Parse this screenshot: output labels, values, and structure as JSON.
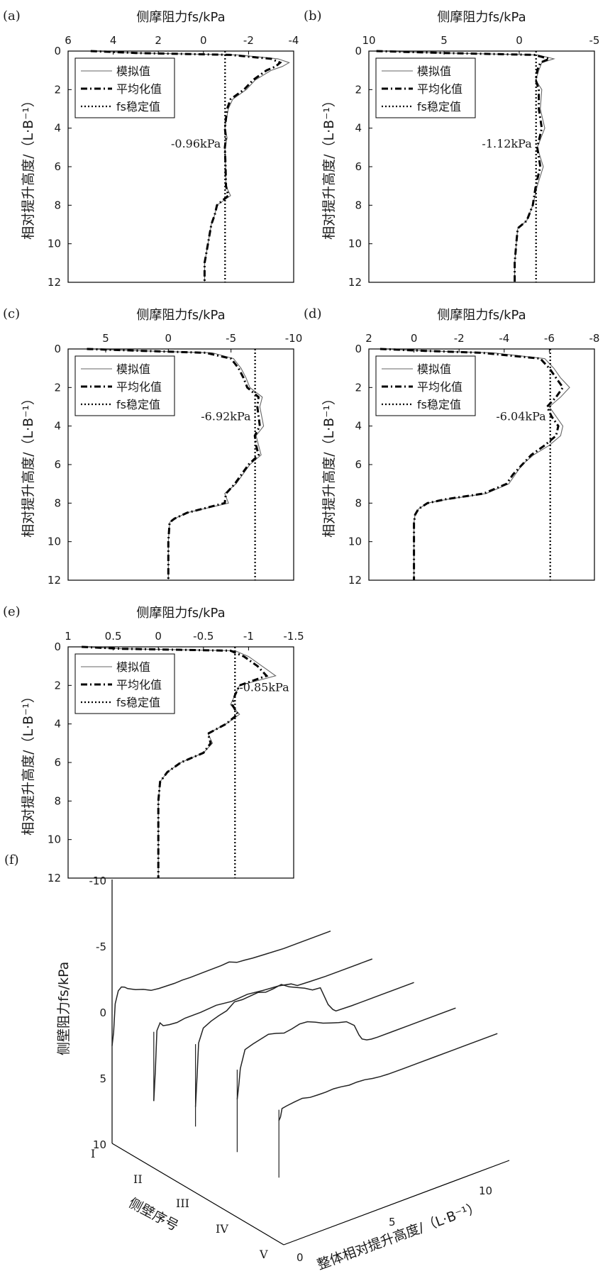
{
  "figure": {
    "panel_f": {
      "label": "(f)",
      "z_label": "侧壁阻力fs/kPa",
      "z_ticks": [
        "-10",
        "-5",
        "0",
        "5",
        "10"
      ],
      "wall_label": "侧壁序号",
      "wall_ticks": [
        "I",
        "II",
        "III",
        "IV",
        "V"
      ],
      "height_label": "整体相对提升高度/（L·B⁻¹）",
      "height_ticks": [
        "0",
        "5",
        "10"
      ]
    }
  },
  "chart_data": [
    {
      "type": "line",
      "panel": "(a)",
      "title": "侧摩阻力fs/kPa",
      "xlabel": "侧摩阻力fs/kPa",
      "ylabel": "相对提升高度/（L·B⁻¹）",
      "xlim": [
        6,
        -4
      ],
      "ylim": [
        12,
        0
      ],
      "x_ticks": [
        "6",
        "4",
        "2",
        "0",
        "-2",
        "-4"
      ],
      "y_ticks": [
        "0",
        "2",
        "4",
        "6",
        "8",
        "10",
        "12"
      ],
      "legend": [
        "模拟值",
        "平均化值",
        "fs稳定值"
      ],
      "legend_position": "top-left",
      "annotation": "-0.96kPa",
      "stable_value": -0.96,
      "series": [
        {
          "name": "模拟值",
          "y": [
            0,
            0.1,
            0.2,
            0.4,
            0.6,
            0.8,
            1,
            1.5,
            2,
            2.5,
            3,
            4,
            4.5,
            5,
            6,
            7,
            7.5,
            8,
            8.5,
            9,
            10,
            11,
            12
          ],
          "x": [
            5,
            3,
            -1.5,
            -3.3,
            -3.8,
            -3.5,
            -3.0,
            -2.3,
            -1.9,
            -1.3,
            -1.1,
            -0.95,
            -1.05,
            -0.95,
            -0.98,
            -1.0,
            -1.2,
            -0.6,
            -0.5,
            -0.35,
            -0.2,
            -0.05,
            -0.05
          ]
        },
        {
          "name": "平均化值",
          "y": [
            0,
            0.1,
            0.2,
            0.4,
            0.6,
            0.8,
            1,
            1.5,
            2,
            2.5,
            3,
            4,
            4.5,
            5,
            6,
            7,
            7.5,
            8,
            8.5,
            9,
            10,
            11,
            12
          ],
          "x": [
            5,
            3,
            -1.2,
            -3.0,
            -3.4,
            -3.2,
            -2.8,
            -2.2,
            -1.8,
            -1.2,
            -1.05,
            -0.95,
            -1.0,
            -0.95,
            -0.98,
            -1.0,
            -1.1,
            -0.6,
            -0.5,
            -0.35,
            -0.2,
            -0.05,
            -0.05
          ]
        },
        {
          "name": "fs稳定值",
          "y": [
            0,
            12
          ],
          "x": [
            -0.96,
            -0.96
          ]
        }
      ]
    },
    {
      "type": "line",
      "panel": "(b)",
      "title": "侧摩阻力fs/kPa",
      "xlabel": "侧摩阻力fs/kPa",
      "ylabel": "相对提升高度/（L·B⁻¹）",
      "xlim": [
        10,
        -5
      ],
      "ylim": [
        12,
        0
      ],
      "x_ticks": [
        "10",
        "5",
        "0",
        "-5"
      ],
      "y_ticks": [
        "0",
        "2",
        "4",
        "6",
        "8",
        "10",
        "12"
      ],
      "legend": [
        "模拟值",
        "平均化值",
        "fs稳定值"
      ],
      "legend_position": "top-left",
      "annotation": "-1.12kPa",
      "stable_value": -1.12,
      "series": [
        {
          "name": "模拟值",
          "y": [
            0,
            0.1,
            0.2,
            0.4,
            0.6,
            1,
            1.5,
            2,
            3,
            4,
            5,
            6,
            7,
            8,
            8.8,
            9.2,
            10,
            11,
            12
          ],
          "x": [
            9.5,
            5,
            -1.2,
            -2.3,
            -1.5,
            -1.3,
            -1.1,
            -1.5,
            -1.4,
            -1.7,
            -1.2,
            -1.6,
            -1.2,
            -0.9,
            -0.5,
            0.1,
            0.2,
            0.3,
            0.3
          ]
        },
        {
          "name": "平均化值",
          "y": [
            0,
            0.1,
            0.2,
            0.4,
            0.6,
            1,
            1.5,
            2,
            3,
            4,
            5,
            6,
            7,
            8,
            8.8,
            9.2,
            10,
            11,
            12
          ],
          "x": [
            9.5,
            5,
            -1.0,
            -2.0,
            -1.4,
            -1.2,
            -1.1,
            -1.3,
            -1.3,
            -1.5,
            -1.2,
            -1.4,
            -1.1,
            -0.9,
            -0.5,
            0.1,
            0.2,
            0.3,
            0.3
          ]
        },
        {
          "name": "fs稳定值",
          "y": [
            0,
            12
          ],
          "x": [
            -1.12,
            -1.12
          ]
        }
      ]
    },
    {
      "type": "line",
      "panel": "(c)",
      "title": "侧摩阻力fs/kPa",
      "xlabel": "侧摩阻力fs/kPa",
      "ylabel": "相对提升高度/（L·B⁻¹）",
      "xlim": [
        8,
        -10
      ],
      "ylim": [
        12,
        0
      ],
      "x_ticks": [
        "5",
        "0",
        "-5",
        "-10"
      ],
      "y_ticks": [
        "0",
        "2",
        "4",
        "6",
        "8",
        "10",
        "12"
      ],
      "legend": [
        "模拟值",
        "平均化值",
        "fs稳定值"
      ],
      "legend_position": "top-left",
      "annotation": "-6.92kPa",
      "stable_value": -6.92,
      "series": [
        {
          "name": "模拟值",
          "y": [
            0,
            0.1,
            0.2,
            0.5,
            1,
            1.5,
            2,
            2.5,
            3,
            4,
            4.5,
            5,
            5.5,
            6,
            7,
            7.5,
            8,
            8.5,
            8.8,
            9,
            10,
            11,
            12
          ],
          "x": [
            6.5,
            2,
            -3.5,
            -5.2,
            -5.8,
            -6.2,
            -6.5,
            -7.5,
            -7.3,
            -7.6,
            -7.0,
            -7.2,
            -7.4,
            -6.5,
            -5.4,
            -4.5,
            -4.8,
            -1.5,
            -0.5,
            -0.1,
            0,
            0,
            0
          ]
        },
        {
          "name": "平均化值",
          "y": [
            0,
            0.1,
            0.2,
            0.5,
            1,
            1.5,
            2,
            2.5,
            3,
            4,
            4.5,
            5,
            5.5,
            6,
            7,
            7.5,
            8,
            8.5,
            8.8,
            9,
            10,
            11,
            12
          ],
          "x": [
            6.5,
            2,
            -3.0,
            -5.0,
            -5.6,
            -6.0,
            -6.3,
            -7.2,
            -7.1,
            -7.3,
            -6.9,
            -7.0,
            -7.2,
            -6.4,
            -5.3,
            -4.6,
            -4.5,
            -1.5,
            -0.5,
            -0.1,
            0,
            0,
            0
          ]
        },
        {
          "name": "fs稳定值",
          "y": [
            0,
            12
          ],
          "x": [
            -6.92,
            -6.92
          ]
        }
      ]
    },
    {
      "type": "line",
      "panel": "(d)",
      "title": "侧摩阻力fs/kPa",
      "xlabel": "侧摩阻力fs/kPa",
      "ylabel": "相对提升高度/（L·B⁻¹）",
      "xlim": [
        2,
        -8
      ],
      "ylim": [
        12,
        0
      ],
      "x_ticks": [
        "2",
        "0",
        "-2",
        "-4",
        "-6",
        "-8"
      ],
      "y_ticks": [
        "0",
        "2",
        "4",
        "6",
        "8",
        "10",
        "12"
      ],
      "legend": [
        "模拟值",
        "平均化值",
        "fs稳定值"
      ],
      "legend_position": "top-left",
      "annotation": "-6.04kPa",
      "stable_value": -6.04,
      "series": [
        {
          "name": "模拟值",
          "y": [
            0,
            0.1,
            0.2,
            0.5,
            1,
            1.5,
            2,
            2.5,
            3,
            3.5,
            4,
            4.5,
            5,
            5.5,
            6,
            6.5,
            7,
            7.5,
            7.8,
            8,
            8.3,
            8.6,
            9,
            10,
            11,
            12
          ],
          "x": [
            1.5,
            -0.5,
            -3.5,
            -5.8,
            -6.2,
            -6.5,
            -6.9,
            -6.5,
            -6.0,
            -6.3,
            -6.6,
            -6.5,
            -6.0,
            -5.3,
            -4.8,
            -4.5,
            -4.2,
            -3.2,
            -1.5,
            -0.6,
            -0.2,
            -0.05,
            0,
            0,
            0,
            0
          ]
        },
        {
          "name": "平均化值",
          "y": [
            0,
            0.1,
            0.2,
            0.5,
            1,
            1.5,
            2,
            2.5,
            3,
            3.5,
            4,
            4.5,
            5,
            5.5,
            6,
            6.5,
            7,
            7.5,
            7.8,
            8,
            8.3,
            8.6,
            9,
            10,
            11,
            12
          ],
          "x": [
            1.5,
            -0.5,
            -3.0,
            -5.6,
            -6.0,
            -6.3,
            -6.6,
            -6.3,
            -5.9,
            -6.1,
            -6.4,
            -6.3,
            -5.8,
            -5.2,
            -4.8,
            -4.4,
            -4.1,
            -3.1,
            -1.4,
            -0.6,
            -0.2,
            -0.05,
            0,
            0,
            0,
            0
          ]
        },
        {
          "name": "fs稳定值",
          "y": [
            0,
            12
          ],
          "x": [
            -6.04,
            -6.04
          ]
        }
      ]
    },
    {
      "type": "line",
      "panel": "(e)",
      "title": "侧摩阻力fs/kPa",
      "xlabel": "侧摩阻力fs/kPa",
      "ylabel": "相对提升高度/（L·B⁻¹）",
      "xlim": [
        1,
        -1.5
      ],
      "ylim": [
        12,
        0
      ],
      "x_ticks": [
        "1",
        "0.5",
        "0",
        "-0.5",
        "-1",
        "-1.5"
      ],
      "y_ticks": [
        "0",
        "2",
        "4",
        "6",
        "8",
        "10",
        "12"
      ],
      "legend": [
        "模拟值",
        "平均化值",
        "fs稳定值"
      ],
      "legend_position": "top-left",
      "annotation": "-0.85kPa",
      "stable_value": -0.85,
      "series": [
        {
          "name": "模拟值",
          "y": [
            0,
            0.1,
            0.2,
            0.5,
            1,
            1.5,
            2,
            2.5,
            3,
            3.5,
            4,
            4.5,
            5,
            5.5,
            6,
            6.5,
            7,
            8,
            9,
            10,
            11,
            12
          ],
          "x": [
            0.85,
            0.4,
            -0.85,
            -1.0,
            -1.15,
            -1.3,
            -0.9,
            -0.85,
            -0.8,
            -0.9,
            -0.75,
            -0.55,
            -0.6,
            -0.5,
            -0.25,
            -0.1,
            -0.02,
            0,
            0,
            0,
            0,
            0
          ]
        },
        {
          "name": "平均化值",
          "y": [
            0,
            0.1,
            0.2,
            0.5,
            1,
            1.5,
            2,
            2.5,
            3,
            3.5,
            4,
            4.5,
            5,
            5.5,
            6,
            6.5,
            7,
            8,
            9,
            10,
            11,
            12
          ],
          "x": [
            0.85,
            0.4,
            -0.8,
            -0.95,
            -1.1,
            -1.2,
            -0.9,
            -0.85,
            -0.82,
            -0.88,
            -0.75,
            -0.55,
            -0.58,
            -0.5,
            -0.25,
            -0.1,
            -0.02,
            0,
            0,
            0,
            0,
            0
          ]
        },
        {
          "name": "fs稳定值",
          "y": [
            0,
            12
          ],
          "x": [
            -0.85,
            -0.85
          ]
        }
      ]
    }
  ]
}
